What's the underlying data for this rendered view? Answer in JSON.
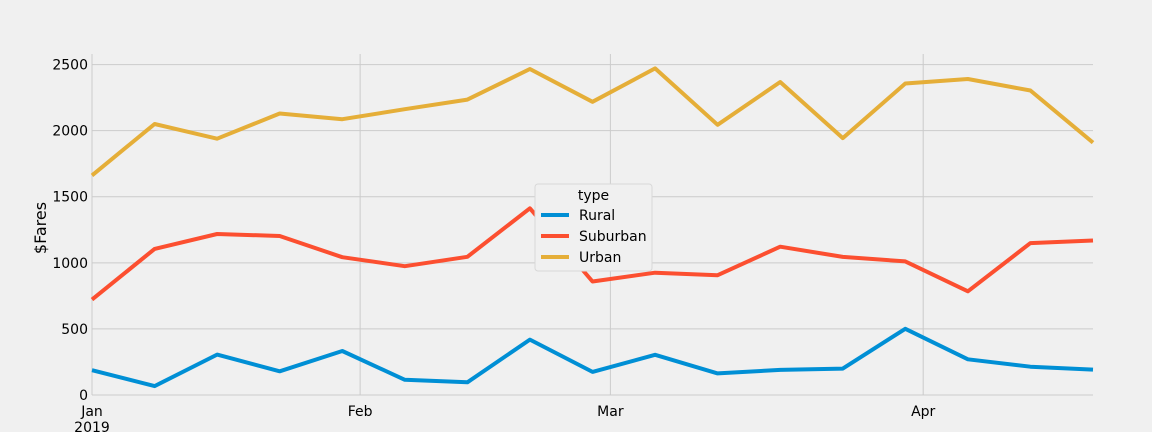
{
  "chart_data": {
    "type": "line",
    "title": "",
    "xlabel": "",
    "ylabel": "$Fares",
    "x": [
      "2019-01-06",
      "2019-01-13",
      "2019-01-20",
      "2019-01-27",
      "2019-02-03",
      "2019-02-10",
      "2019-02-17",
      "2019-02-24",
      "2019-03-03",
      "2019-03-10",
      "2019-03-17",
      "2019-03-24",
      "2019-03-31",
      "2019-04-07",
      "2019-04-14",
      "2019-04-21",
      "2019-04-28"
    ],
    "xlim": [
      "2019-01-06",
      "2019-04-28"
    ],
    "x_ticks": [
      {
        "date": "2019-01-06",
        "label": "Jan",
        "sublabel": "2019"
      },
      {
        "date": "2019-02-05",
        "label": "Feb",
        "sublabel": ""
      },
      {
        "date": "2019-03-05",
        "label": "Mar",
        "sublabel": ""
      },
      {
        "date": "2019-04-09",
        "label": "Apr",
        "sublabel": ""
      }
    ],
    "ylim": [
      0,
      2580
    ],
    "y_ticks": [
      0,
      500,
      1000,
      1500,
      2000,
      2500
    ],
    "grid": true,
    "legend": {
      "title": "type",
      "placement": "center"
    },
    "series": [
      {
        "name": "Rural",
        "color": "#008fd5",
        "values": [
          187.92,
          67.65,
          306.0,
          179.69,
          333.08,
          115.05,
          95.82,
          419.06,
          175.14,
          303.94,
          163.39,
          189.76,
          199.42,
          501.24,
          269.79,
          214.14,
          191.85
        ]
      },
      {
        "name": "Suburban",
        "color": "#fc4f30",
        "values": [
          721.6,
          1105.13,
          1218.2,
          1203.28,
          1042.79,
          974.34,
          1045.5,
          1412.74,
          858.46,
          925.27,
          906.2,
          1122.2,
          1045.06,
          1010.73,
          784.82,
          1149.27,
          1169.04
        ]
      },
      {
        "name": "Urban",
        "color": "#e5ae38",
        "values": [
          1661.68,
          2050.43,
          1939.02,
          2129.51,
          2086.94,
          2162.64,
          2235.07,
          2466.29,
          2218.2,
          2470.93,
          2044.42,
          2368.37,
          1943.9,
          2356.7,
          2390.72,
          2303.8,
          1909.51
        ]
      }
    ]
  }
}
